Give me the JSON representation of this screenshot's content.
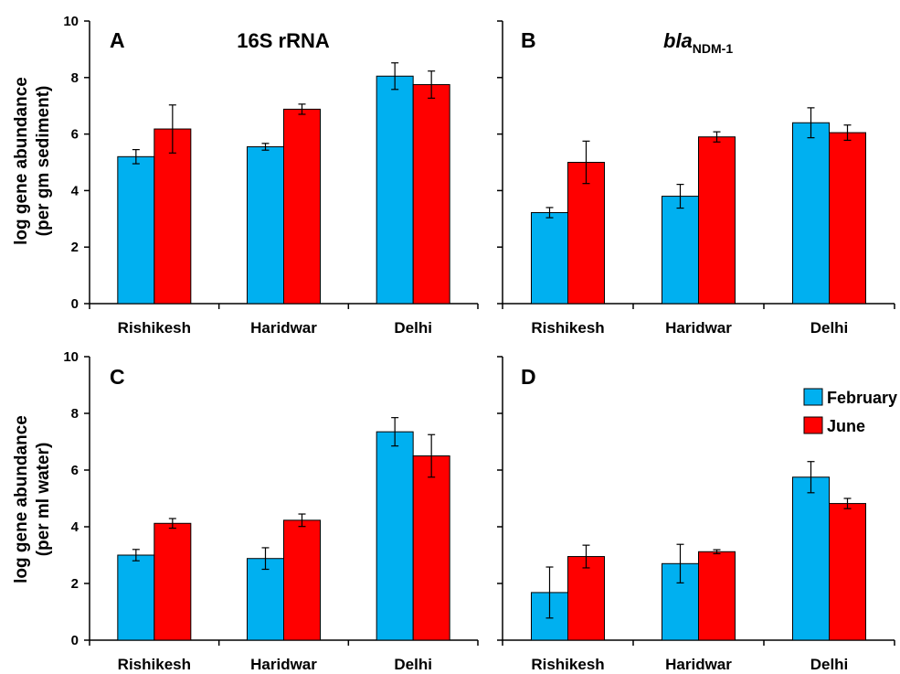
{
  "y_axis_labels": {
    "top": [
      "log gene abundance",
      "(per gm sediment)"
    ],
    "bottom": [
      "log gene abundance",
      "(per ml water)"
    ]
  },
  "legend": [
    {
      "label": "February",
      "color": "#00B0F0"
    },
    {
      "label": "June",
      "color": "#FF0000"
    }
  ],
  "chart_data": [
    {
      "type": "bar",
      "panel": "A",
      "title": "16S rRNA",
      "categories": [
        "Rishikesh",
        "Haridwar",
        "Delhi"
      ],
      "series": [
        {
          "name": "February",
          "color": "#00B0F0",
          "values": [
            5.2,
            5.55,
            8.05
          ],
          "errors": [
            0.25,
            0.12,
            0.47
          ]
        },
        {
          "name": "June",
          "color": "#FF0000",
          "values": [
            6.18,
            6.88,
            7.75
          ],
          "errors": [
            0.85,
            0.18,
            0.48
          ]
        }
      ],
      "ylim": [
        0,
        10
      ],
      "yticks": [
        "0",
        "2",
        "4",
        "6",
        "8",
        "10"
      ]
    },
    {
      "type": "bar",
      "panel": "B",
      "title_italic": "bla",
      "title_sub": "NDM-1",
      "categories": [
        "Rishikesh",
        "Haridwar",
        "Delhi"
      ],
      "series": [
        {
          "name": "February",
          "color": "#00B0F0",
          "values": [
            3.22,
            3.8,
            6.4
          ],
          "errors": [
            0.18,
            0.42,
            0.53
          ]
        },
        {
          "name": "June",
          "color": "#FF0000",
          "values": [
            5.0,
            5.9,
            6.05
          ],
          "errors": [
            0.75,
            0.18,
            0.27
          ]
        }
      ],
      "ylim": [
        0,
        10
      ]
    },
    {
      "type": "bar",
      "panel": "C",
      "categories": [
        "Rishikesh",
        "Haridwar",
        "Delhi"
      ],
      "series": [
        {
          "name": "February",
          "color": "#00B0F0",
          "values": [
            3.0,
            2.88,
            7.35
          ],
          "errors": [
            0.2,
            0.38,
            0.5
          ]
        },
        {
          "name": "June",
          "color": "#FF0000",
          "values": [
            4.12,
            4.23,
            6.5
          ],
          "errors": [
            0.17,
            0.22,
            0.75
          ]
        }
      ],
      "ylim": [
        0,
        10
      ],
      "yticks": [
        "0",
        "2",
        "4",
        "6",
        "8",
        "10"
      ]
    },
    {
      "type": "bar",
      "panel": "D",
      "categories": [
        "Rishikesh",
        "Haridwar",
        "Delhi"
      ],
      "series": [
        {
          "name": "February",
          "color": "#00B0F0",
          "values": [
            1.68,
            2.7,
            5.75
          ],
          "errors": [
            0.9,
            0.68,
            0.55
          ]
        },
        {
          "name": "June",
          "color": "#FF0000",
          "values": [
            2.95,
            3.12,
            4.82
          ],
          "errors": [
            0.4,
            0.07,
            0.18
          ]
        }
      ],
      "ylim": [
        0,
        10
      ]
    }
  ]
}
